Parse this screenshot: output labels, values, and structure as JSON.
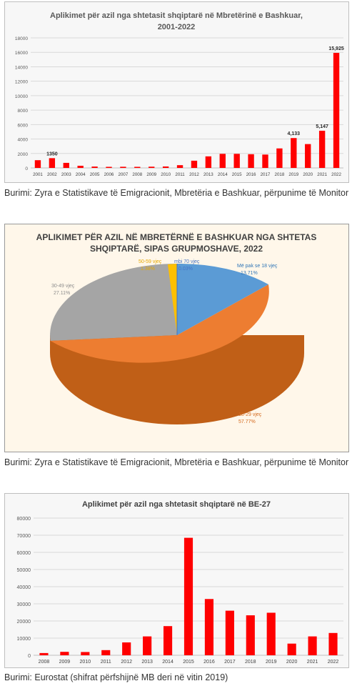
{
  "charts": [
    {
      "title_line1": "Aplikimet për azil nga shtetasit shqiptarë në Mbretërinë e Bashkuar,",
      "title_line2": "2001-2022",
      "bar_color": "#ff0000"
    },
    {
      "title_line1": "APLIKIMET PËR AZIL NË MBRETËRNË E BASHKUAR NGA SHTETAS",
      "title_line2": "SHQIPTARË, SIPAS GRUPMOSHAVE, 2022",
      "slices": [
        {
          "label": "Më pak se 18 vjeç",
          "pct": "13.71%",
          "color": "#5b9bd5"
        },
        {
          "label": "18-29 vjeç",
          "pct": "57.77%",
          "color": "#ed7d31"
        },
        {
          "label": "30-49 vjeç",
          "pct": "27.11%",
          "color": "#a5a5a5"
        },
        {
          "label": "50-59 vjeç",
          "pct": "1.38%",
          "color": "#ffc000"
        },
        {
          "label": "mbi 70 vjeç",
          "pct": "0.03%",
          "color": "#4472c4"
        }
      ]
    },
    {
      "title": "Aplikimet për azil nga shtetasit shqiptarë në BE-27",
      "bar_color": "#ff0000"
    }
  ],
  "captions": [
    "Burimi: Zyra e Statistikave të Emigracionit, Mbretëria e Bashkuar, përpunime të Monitor",
    "Burimi: Zyra e Statistikave të Emigracionit, Mbretëria e Bashkuar, përpunime të Monitor",
    "Burimi: Eurostat (shifrat përfshijnë MB deri në vitin 2019)"
  ],
  "chart_data": [
    {
      "type": "bar",
      "title": "Aplikimet për azil nga shtetasit shqiptarë në Mbretërinë e Bashkuar, 2001-2022",
      "categories": [
        "2001",
        "2002",
        "2003",
        "2004",
        "2005",
        "2006",
        "2007",
        "2008",
        "2009",
        "2010",
        "2011",
        "2012",
        "2013",
        "2014",
        "2015",
        "2016",
        "2017",
        "2018",
        "2019",
        "2020",
        "2021",
        "2022"
      ],
      "values": [
        1070,
        1350,
        700,
        300,
        190,
        150,
        160,
        150,
        170,
        200,
        380,
        1000,
        1600,
        1950,
        1950,
        1900,
        1850,
        2700,
        4133,
        3300,
        5147,
        15925
      ],
      "data_labels": {
        "1": "1350",
        "18": "4,133",
        "20": "5,147",
        "21": "15,925"
      },
      "ylim": [
        0,
        18000
      ],
      "yticks": [
        0,
        2000,
        4000,
        6000,
        8000,
        10000,
        12000,
        14000,
        16000,
        18000
      ],
      "grid": true
    },
    {
      "type": "pie",
      "title": "APLIKIMET PËR AZIL NË MBRETËRNË E BASHKUAR NGA SHTETAS SHQIPTARË, SIPAS GRUPMOSHAVE, 2022",
      "labels": [
        "Më pak se 18 vjeç",
        "18-29 vjeç",
        "30-49 vjeç",
        "50-59 vjeç",
        "mbi 70 vjeç"
      ],
      "values": [
        13.71,
        57.77,
        27.11,
        1.38,
        0.03
      ]
    },
    {
      "type": "bar",
      "title": "Aplikimet për azil nga shtetasit shqiptarë në BE-27",
      "categories": [
        "2008",
        "2009",
        "2010",
        "2011",
        "2012",
        "2013",
        "2014",
        "2015",
        "2016",
        "2017",
        "2018",
        "2019",
        "2020",
        "2021",
        "2022"
      ],
      "values": [
        1300,
        2000,
        1900,
        3000,
        7500,
        11000,
        17000,
        68500,
        32800,
        26000,
        23300,
        24800,
        6800,
        11000,
        13000
      ],
      "ylim": [
        0,
        80000
      ],
      "yticks": [
        0,
        10000,
        20000,
        30000,
        40000,
        50000,
        60000,
        70000,
        80000
      ],
      "grid": true
    }
  ]
}
